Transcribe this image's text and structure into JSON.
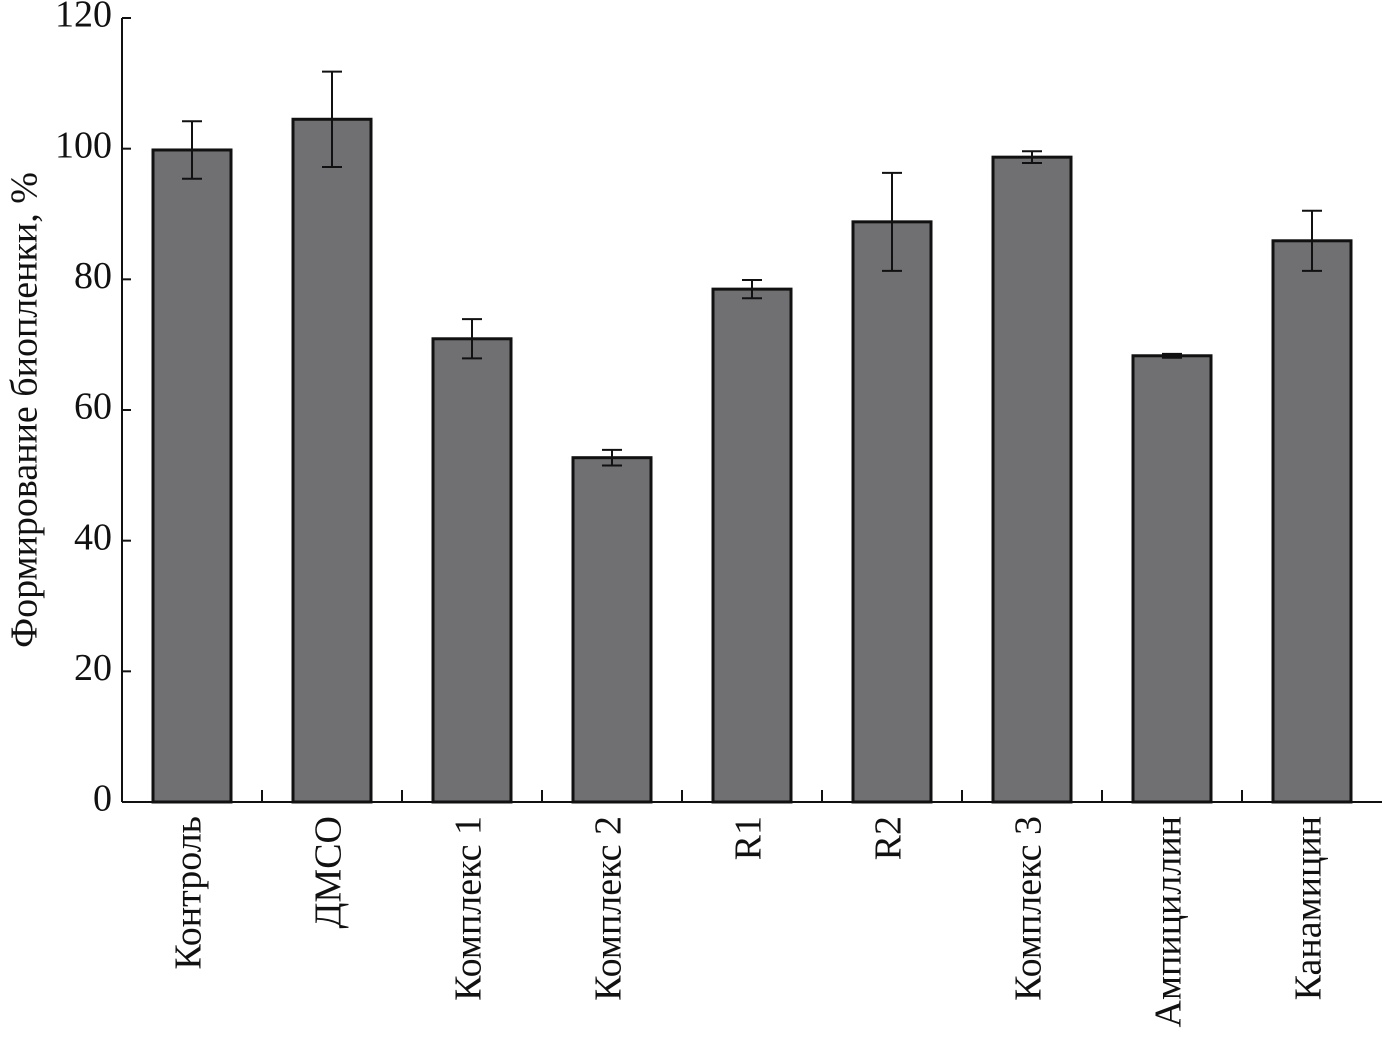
{
  "chart_data": {
    "type": "bar",
    "ylabel": "Формирование биопленки, %",
    "categories": [
      "Контроль",
      "ДМСО",
      "Комплекс 1",
      "Комплекс 2",
      "R1",
      "R2",
      "Комплекс 3",
      "Ампициллин",
      "Канамицин"
    ],
    "values": [
      99.8,
      104.5,
      70.9,
      52.7,
      78.5,
      88.8,
      98.7,
      68.3,
      85.9
    ],
    "errors": [
      4.4,
      7.3,
      3.0,
      1.2,
      1.4,
      7.5,
      0.9,
      0.3,
      4.6
    ],
    "color": "#707073",
    "ylim": [
      0,
      120
    ],
    "yticks": [
      0,
      20,
      40,
      60,
      80,
      100,
      120
    ]
  }
}
